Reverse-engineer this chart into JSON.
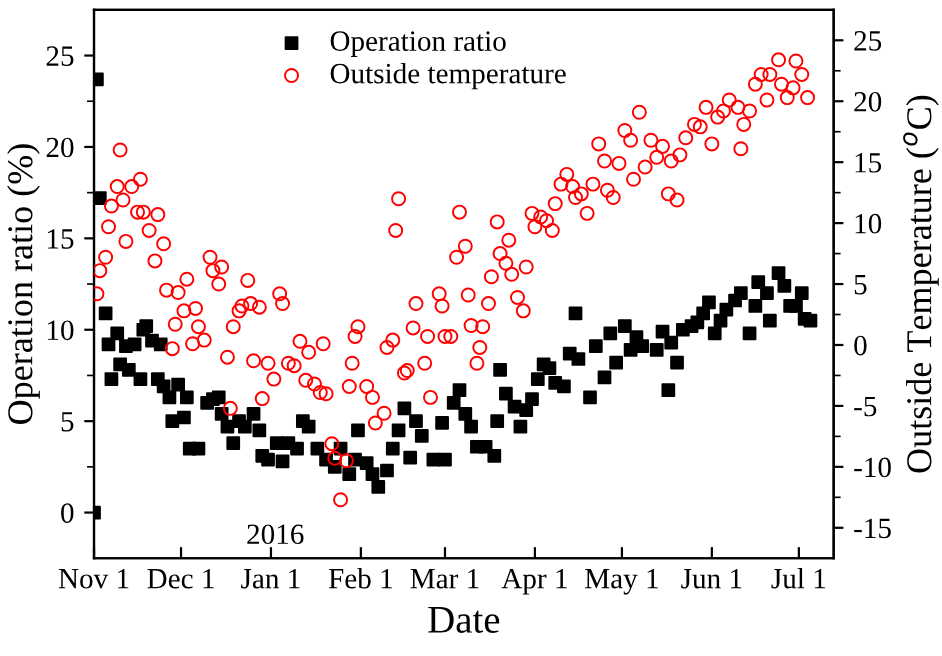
{
  "chart_data": {
    "type": "scatter",
    "xlabel": "Date",
    "ylabel": "Operation ratio (%)",
    "y2label": "Outside Temperature ($^{o}$C)",
    "annotations": [
      "2016"
    ],
    "xlim": [
      "2015-11-01",
      "2016-07-13"
    ],
    "xticks": [
      {
        "value": "2015-11-01",
        "label": "Nov 1"
      },
      {
        "value": "2015-12-01",
        "label": "Dec 1"
      },
      {
        "value": "2016-01-01",
        "label": "Jan 1"
      },
      {
        "value": "2016-02-01",
        "label": "Feb 1"
      },
      {
        "value": "2016-03-01",
        "label": "Mar 1"
      },
      {
        "value": "2016-04-01",
        "label": "Apr 1"
      },
      {
        "value": "2016-05-01",
        "label": "May 1"
      },
      {
        "value": "2016-06-01",
        "label": "Jun 1"
      },
      {
        "value": "2016-07-01",
        "label": "Jul 1"
      }
    ],
    "ylim": [
      -2.5,
      27.5
    ],
    "yticks": [
      0,
      {
        "value": 2.5,
        "label": null
      },
      5,
      {
        "value": 7.5,
        "label": null
      },
      10,
      {
        "value": 12.5,
        "label": null
      },
      15,
      {
        "value": 17.5,
        "label": null
      },
      20,
      {
        "value": 22.5,
        "label": null
      },
      25
    ],
    "y2lim": [
      -17.5,
      27.5
    ],
    "y2ticks": [
      -15,
      {
        "value": -12.5,
        "label": null
      },
      -10,
      {
        "value": -7.5,
        "label": null
      },
      -5,
      {
        "value": -2.5,
        "label": null
      },
      0,
      {
        "value": 2.5,
        "label": null
      },
      5,
      {
        "value": 7.5,
        "label": null
      },
      10,
      {
        "value": 12.5,
        "label": null
      },
      15,
      {
        "value": 17.5,
        "label": null
      },
      20,
      {
        "value": 22.5,
        "label": null
      },
      25
    ],
    "grid": false,
    "legend": "top left",
    "series": [
      {
        "name": "Operation ratio",
        "color": "#000000",
        "marker": "square",
        "x": [
          "2015-11-01",
          "2015-11-02",
          "2015-11-03",
          "2015-11-05",
          "2015-11-06",
          "2015-11-07",
          "2015-11-09",
          "2015-11-10",
          "2015-11-12",
          "2015-11-13",
          "2015-11-15",
          "2015-11-17",
          "2015-11-18",
          "2015-11-19",
          "2015-11-21",
          "2015-11-23",
          "2015-11-24",
          "2015-11-25",
          "2015-11-27",
          "2015-11-28",
          "2015-11-30",
          "2015-12-02",
          "2015-12-03",
          "2015-12-04",
          "2015-12-07",
          "2015-12-10",
          "2015-12-12",
          "2015-12-14",
          "2015-12-15",
          "2015-12-17",
          "2015-12-19",
          "2015-12-21",
          "2015-12-23",
          "2015-12-26",
          "2015-12-28",
          "2015-12-29",
          "2015-12-31",
          "2016-01-03",
          "2016-01-05",
          "2016-01-07",
          "2016-01-10",
          "2016-01-12",
          "2016-01-14",
          "2016-01-17",
          "2016-01-20",
          "2016-01-23",
          "2016-01-25",
          "2016-01-28",
          "2016-01-30",
          "2016-01-31",
          "2016-02-03",
          "2016-02-05",
          "2016-02-07",
          "2016-02-10",
          "2016-02-12",
          "2016-02-14",
          "2016-02-16",
          "2016-02-18",
          "2016-02-20",
          "2016-02-22",
          "2016-02-26",
          "2016-02-29",
          "2016-03-01",
          "2016-03-04",
          "2016-03-06",
          "2016-03-08",
          "2016-03-10",
          "2016-03-12",
          "2016-03-15",
          "2016-03-18",
          "2016-03-19",
          "2016-03-20",
          "2016-03-22",
          "2016-03-25",
          "2016-03-27",
          "2016-03-29",
          "2016-03-31",
          "2016-04-02",
          "2016-04-04",
          "2016-04-06",
          "2016-04-08",
          "2016-04-11",
          "2016-04-13",
          "2016-04-15",
          "2016-04-16",
          "2016-04-20",
          "2016-04-22",
          "2016-04-25",
          "2016-04-27",
          "2016-04-29",
          "2016-05-02",
          "2016-05-04",
          "2016-05-06",
          "2016-05-08",
          "2016-05-13",
          "2016-05-15",
          "2016-05-17",
          "2016-05-18",
          "2016-05-20",
          "2016-05-22",
          "2016-05-25",
          "2016-05-27",
          "2016-05-29",
          "2016-05-31",
          "2016-06-02",
          "2016-06-04",
          "2016-06-06",
          "2016-06-09",
          "2016-06-11",
          "2016-06-14",
          "2016-06-16",
          "2016-06-17",
          "2016-06-20",
          "2016-06-21",
          "2016-06-24",
          "2016-06-26",
          "2016-06-28",
          "2016-06-30",
          "2016-07-02",
          "2016-07-03",
          "2016-07-05"
        ],
        "values": [
          0,
          23.7,
          17.2,
          10.9,
          9.2,
          7.3,
          9.8,
          8.1,
          9.1,
          7.8,
          9.2,
          7.3,
          10.0,
          10.2,
          9.4,
          7.3,
          9.2,
          6.9,
          6.3,
          5.0,
          7.0,
          5.2,
          6.3,
          3.5,
          3.5,
          6.0,
          6.2,
          6.3,
          5.4,
          4.7,
          3.8,
          5.0,
          4.7,
          5.4,
          4.5,
          3.1,
          2.9,
          3.8,
          2.8,
          3.8,
          3.5,
          5.0,
          4.7,
          3.5,
          2.9,
          2.5,
          3.5,
          2.1,
          2.9,
          4.5,
          2.7,
          2.1,
          1.4,
          2.3,
          3.5,
          4.5,
          5.7,
          3.0,
          5.0,
          4.2,
          2.9,
          4.9,
          2.9,
          6.0,
          6.7,
          5.4,
          4.7,
          3.6,
          3.6,
          3.1,
          5.0,
          7.8,
          6.5,
          5.8,
          4.7,
          5.6,
          6.2,
          7.3,
          8.1,
          7.9,
          7.1,
          6.9,
          8.7,
          10.9,
          8.4,
          6.3,
          9.1,
          7.4,
          9.8,
          8.2,
          10.2,
          8.9,
          9.6,
          9.1,
          8.9,
          9.9,
          6.7,
          9.3,
          8.2,
          10.0,
          10.2,
          10.4,
          10.9,
          11.5,
          9.8,
          10.5,
          11.1,
          11.6,
          12.0,
          9.8,
          11.3,
          12.6,
          12.0,
          10.5,
          13.1,
          12.4,
          11.3,
          11.3,
          12.0,
          10.6,
          10.5
        ]
      },
      {
        "name": "Outside temperature",
        "color": "#ff0000",
        "marker": "circle",
        "axis": "y2",
        "x": [
          "2015-11-02",
          "2015-11-03",
          "2015-11-05",
          "2015-11-06",
          "2015-11-07",
          "2015-11-09",
          "2015-11-10",
          "2015-11-11",
          "2015-11-12",
          "2015-11-14",
          "2015-11-16",
          "2015-11-17",
          "2015-11-18",
          "2015-11-20",
          "2015-11-22",
          "2015-11-23",
          "2015-11-25",
          "2015-11-26",
          "2015-11-28",
          "2015-11-29",
          "2015-11-30",
          "2015-12-02",
          "2015-12-03",
          "2015-12-05",
          "2015-12-06",
          "2015-12-07",
          "2015-12-09",
          "2015-12-11",
          "2015-12-12",
          "2015-12-14",
          "2015-12-15",
          "2015-12-17",
          "2015-12-18",
          "2015-12-19",
          "2015-12-21",
          "2015-12-22",
          "2015-12-24",
          "2015-12-25",
          "2015-12-26",
          "2015-12-28",
          "2015-12-29",
          "2015-12-31",
          "2016-01-02",
          "2016-01-04",
          "2016-01-05",
          "2016-01-07",
          "2016-01-09",
          "2016-01-11",
          "2016-01-13",
          "2016-01-14",
          "2016-01-16",
          "2016-01-18",
          "2016-01-19",
          "2016-01-20",
          "2016-01-22",
          "2016-01-23",
          "2016-01-25",
          "2016-01-27",
          "2016-01-28",
          "2016-01-29",
          "2016-01-30",
          "2016-01-31",
          "2016-02-03",
          "2016-02-05",
          "2016-02-06",
          "2016-02-09",
          "2016-02-10",
          "2016-02-12",
          "2016-02-13",
          "2016-02-14",
          "2016-02-16",
          "2016-02-17",
          "2016-02-19",
          "2016-02-20",
          "2016-02-23",
          "2016-02-24",
          "2016-02-25",
          "2016-02-28",
          "2016-02-29",
          "2016-03-01",
          "2016-03-03",
          "2016-03-05",
          "2016-03-06",
          "2016-03-08",
          "2016-03-09",
          "2016-03-10",
          "2016-03-12",
          "2016-03-13",
          "2016-03-14",
          "2016-03-16",
          "2016-03-17",
          "2016-03-19",
          "2016-03-20",
          "2016-03-22",
          "2016-03-23",
          "2016-03-24",
          "2016-03-26",
          "2016-03-28",
          "2016-03-29",
          "2016-03-31",
          "2016-04-01",
          "2016-04-03",
          "2016-04-05",
          "2016-04-07",
          "2016-04-08",
          "2016-04-10",
          "2016-04-12",
          "2016-04-14",
          "2016-04-15",
          "2016-04-17",
          "2016-04-19",
          "2016-04-21",
          "2016-04-23",
          "2016-04-25",
          "2016-04-26",
          "2016-04-28",
          "2016-04-30",
          "2016-05-02",
          "2016-05-04",
          "2016-05-05",
          "2016-05-07",
          "2016-05-09",
          "2016-05-11",
          "2016-05-13",
          "2016-05-15",
          "2016-05-17",
          "2016-05-18",
          "2016-05-20",
          "2016-05-21",
          "2016-05-23",
          "2016-05-26",
          "2016-05-28",
          "2016-05-30",
          "2016-06-01",
          "2016-06-03",
          "2016-06-05",
          "2016-06-07",
          "2016-06-10",
          "2016-06-11",
          "2016-06-12",
          "2016-06-14",
          "2016-06-16",
          "2016-06-18",
          "2016-06-20",
          "2016-06-21",
          "2016-06-24",
          "2016-06-25",
          "2016-06-27",
          "2016-06-29",
          "2016-06-30",
          "2016-07-02",
          "2016-07-04"
        ],
        "values": [
          4.2,
          6.1,
          7.2,
          9.7,
          11.4,
          13.0,
          16.0,
          11.9,
          8.5,
          13.0,
          10.9,
          13.6,
          10.9,
          9.4,
          6.9,
          10.7,
          8.3,
          4.5,
          -0.3,
          1.7,
          4.3,
          2.8,
          5.4,
          0.1,
          3.0,
          1.5,
          0.4,
          7.2,
          6.1,
          5.0,
          6.4,
          -1.0,
          -5.2,
          1.5,
          2.8,
          3.2,
          5.3,
          3.4,
          -1.3,
          3.1,
          -4.4,
          -1.5,
          -2.8,
          4.2,
          3.4,
          -1.5,
          -1.7,
          0.3,
          -2.9,
          -0.6,
          -3.2,
          -3.9,
          0.1,
          -4.0,
          -8.1,
          -9.3,
          -12.7,
          -9.5,
          -3.4,
          -1.5,
          0.7,
          1.5,
          -3.4,
          -4.3,
          -6.4,
          -5.6,
          -0.2,
          0.4,
          9.4,
          12.0,
          -2.3,
          -2.1,
          1.4,
          3.4,
          -1.5,
          0.7,
          -4.3,
          4.2,
          3.2,
          0.7,
          0.7,
          7.2,
          10.9,
          8.1,
          4.1,
          1.6,
          -1.5,
          -0.2,
          1.5,
          3.4,
          5.6,
          10.1,
          7.5,
          6.7,
          8.6,
          5.8,
          3.9,
          2.8,
          6.4,
          10.8,
          9.7,
          10.5,
          10.2,
          9.4,
          11.6,
          13.2,
          14.0,
          13.0,
          12.1,
          12.4,
          10.8,
          13.2,
          16.5,
          15.1,
          12.7,
          12.1,
          14.9,
          17.6,
          16.8,
          13.6,
          19.1,
          14.6,
          16.8,
          15.4,
          16.3,
          12.4,
          15.1,
          11.9,
          15.6,
          17.0,
          18.1,
          17.9,
          19.5,
          16.5,
          18.7,
          19.2,
          20.1,
          19.5,
          16.1,
          18.1,
          19.2,
          21.4,
          22.2,
          20.1,
          22.2,
          23.4,
          21.4,
          20.3,
          21.1,
          23.3,
          22.2,
          20.3
        ]
      }
    ]
  }
}
